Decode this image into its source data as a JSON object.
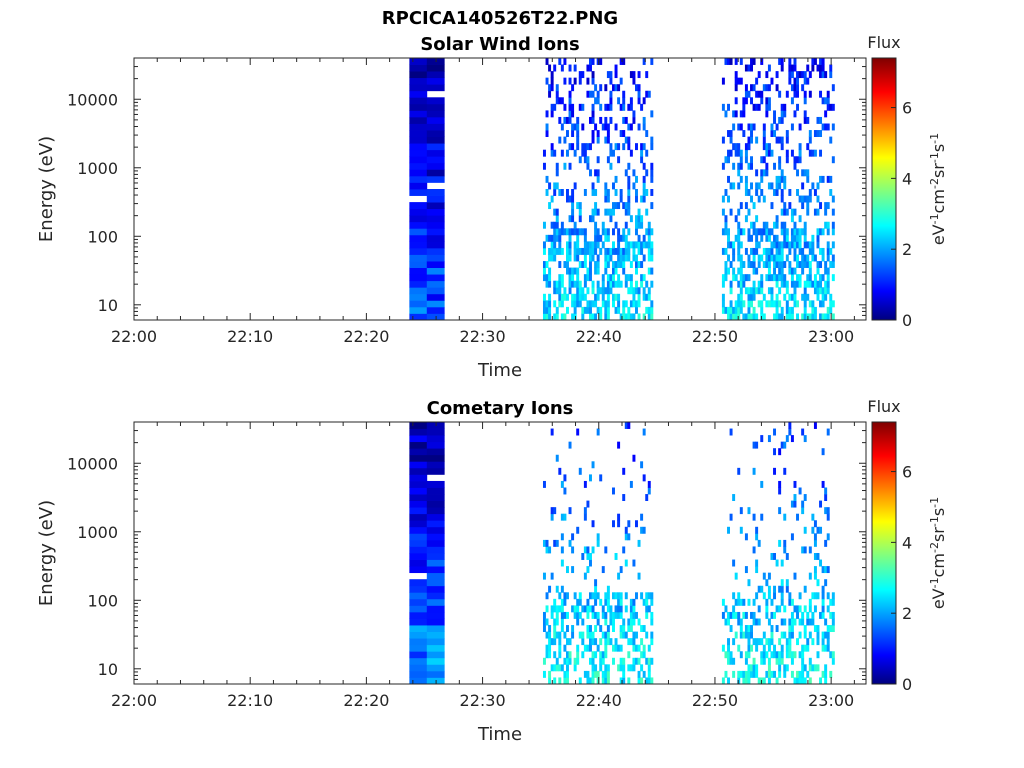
{
  "figure_title": "RPCICA140526T22.PNG",
  "chart_data": [
    {
      "type": "heatmap",
      "title": "Solar Wind Ions",
      "xlabel": "Time",
      "ylabel": "Energy (eV)",
      "x_ticks": [
        "22:00",
        "22:10",
        "22:20",
        "22:30",
        "22:40",
        "22:50",
        "23:00"
      ],
      "x_range_minutes": [
        0,
        63
      ],
      "y_scale": "log",
      "y_ticks": [
        "10",
        "100",
        "1000",
        "10000"
      ],
      "y_range": [
        6,
        40000
      ],
      "colorbar": {
        "title": "Flux",
        "label": "eV-1cm-2sr-1s-1",
        "ticks": [
          "0",
          "2",
          "4",
          "6"
        ],
        "range": [
          0,
          7.4
        ],
        "colormap": "jet"
      },
      "regions": [
        {
          "start": 23.7,
          "end": 26.7,
          "flux": "continuous",
          "level_low": 1.5,
          "level_high": 0.3
        },
        {
          "start": 35.2,
          "end": 44.5,
          "flux": "sparse",
          "level_low": 2.6,
          "level_high": 0.9
        },
        {
          "start": 50.6,
          "end": 60.2,
          "flux": "sparse",
          "level_low": 2.6,
          "level_high": 0.9
        }
      ]
    },
    {
      "type": "heatmap",
      "title": "Cometary Ions",
      "xlabel": "Time",
      "ylabel": "Energy (eV)",
      "x_ticks": [
        "22:00",
        "22:10",
        "22:20",
        "22:30",
        "22:40",
        "22:50",
        "23:00"
      ],
      "x_range_minutes": [
        0,
        63
      ],
      "y_scale": "log",
      "y_ticks": [
        "10",
        "100",
        "1000",
        "10000"
      ],
      "y_range": [
        6,
        40000
      ],
      "colorbar": {
        "title": "Flux",
        "label": "eV-1cm-2sr-1s-1",
        "ticks": [
          "0",
          "2",
          "4",
          "6"
        ],
        "range": [
          0,
          7.4
        ],
        "colormap": "jet"
      },
      "regions": [
        {
          "start": 23.7,
          "end": 26.7,
          "flux": "continuous",
          "level_low": 2.0,
          "level_high": 0.2
        },
        {
          "start": 35.2,
          "end": 44.5,
          "flux": "very-sparse",
          "level_low": 2.8,
          "level_high": 1.2
        },
        {
          "start": 50.6,
          "end": 60.2,
          "flux": "very-sparse",
          "level_low": 2.8,
          "level_high": 1.2
        }
      ]
    }
  ]
}
